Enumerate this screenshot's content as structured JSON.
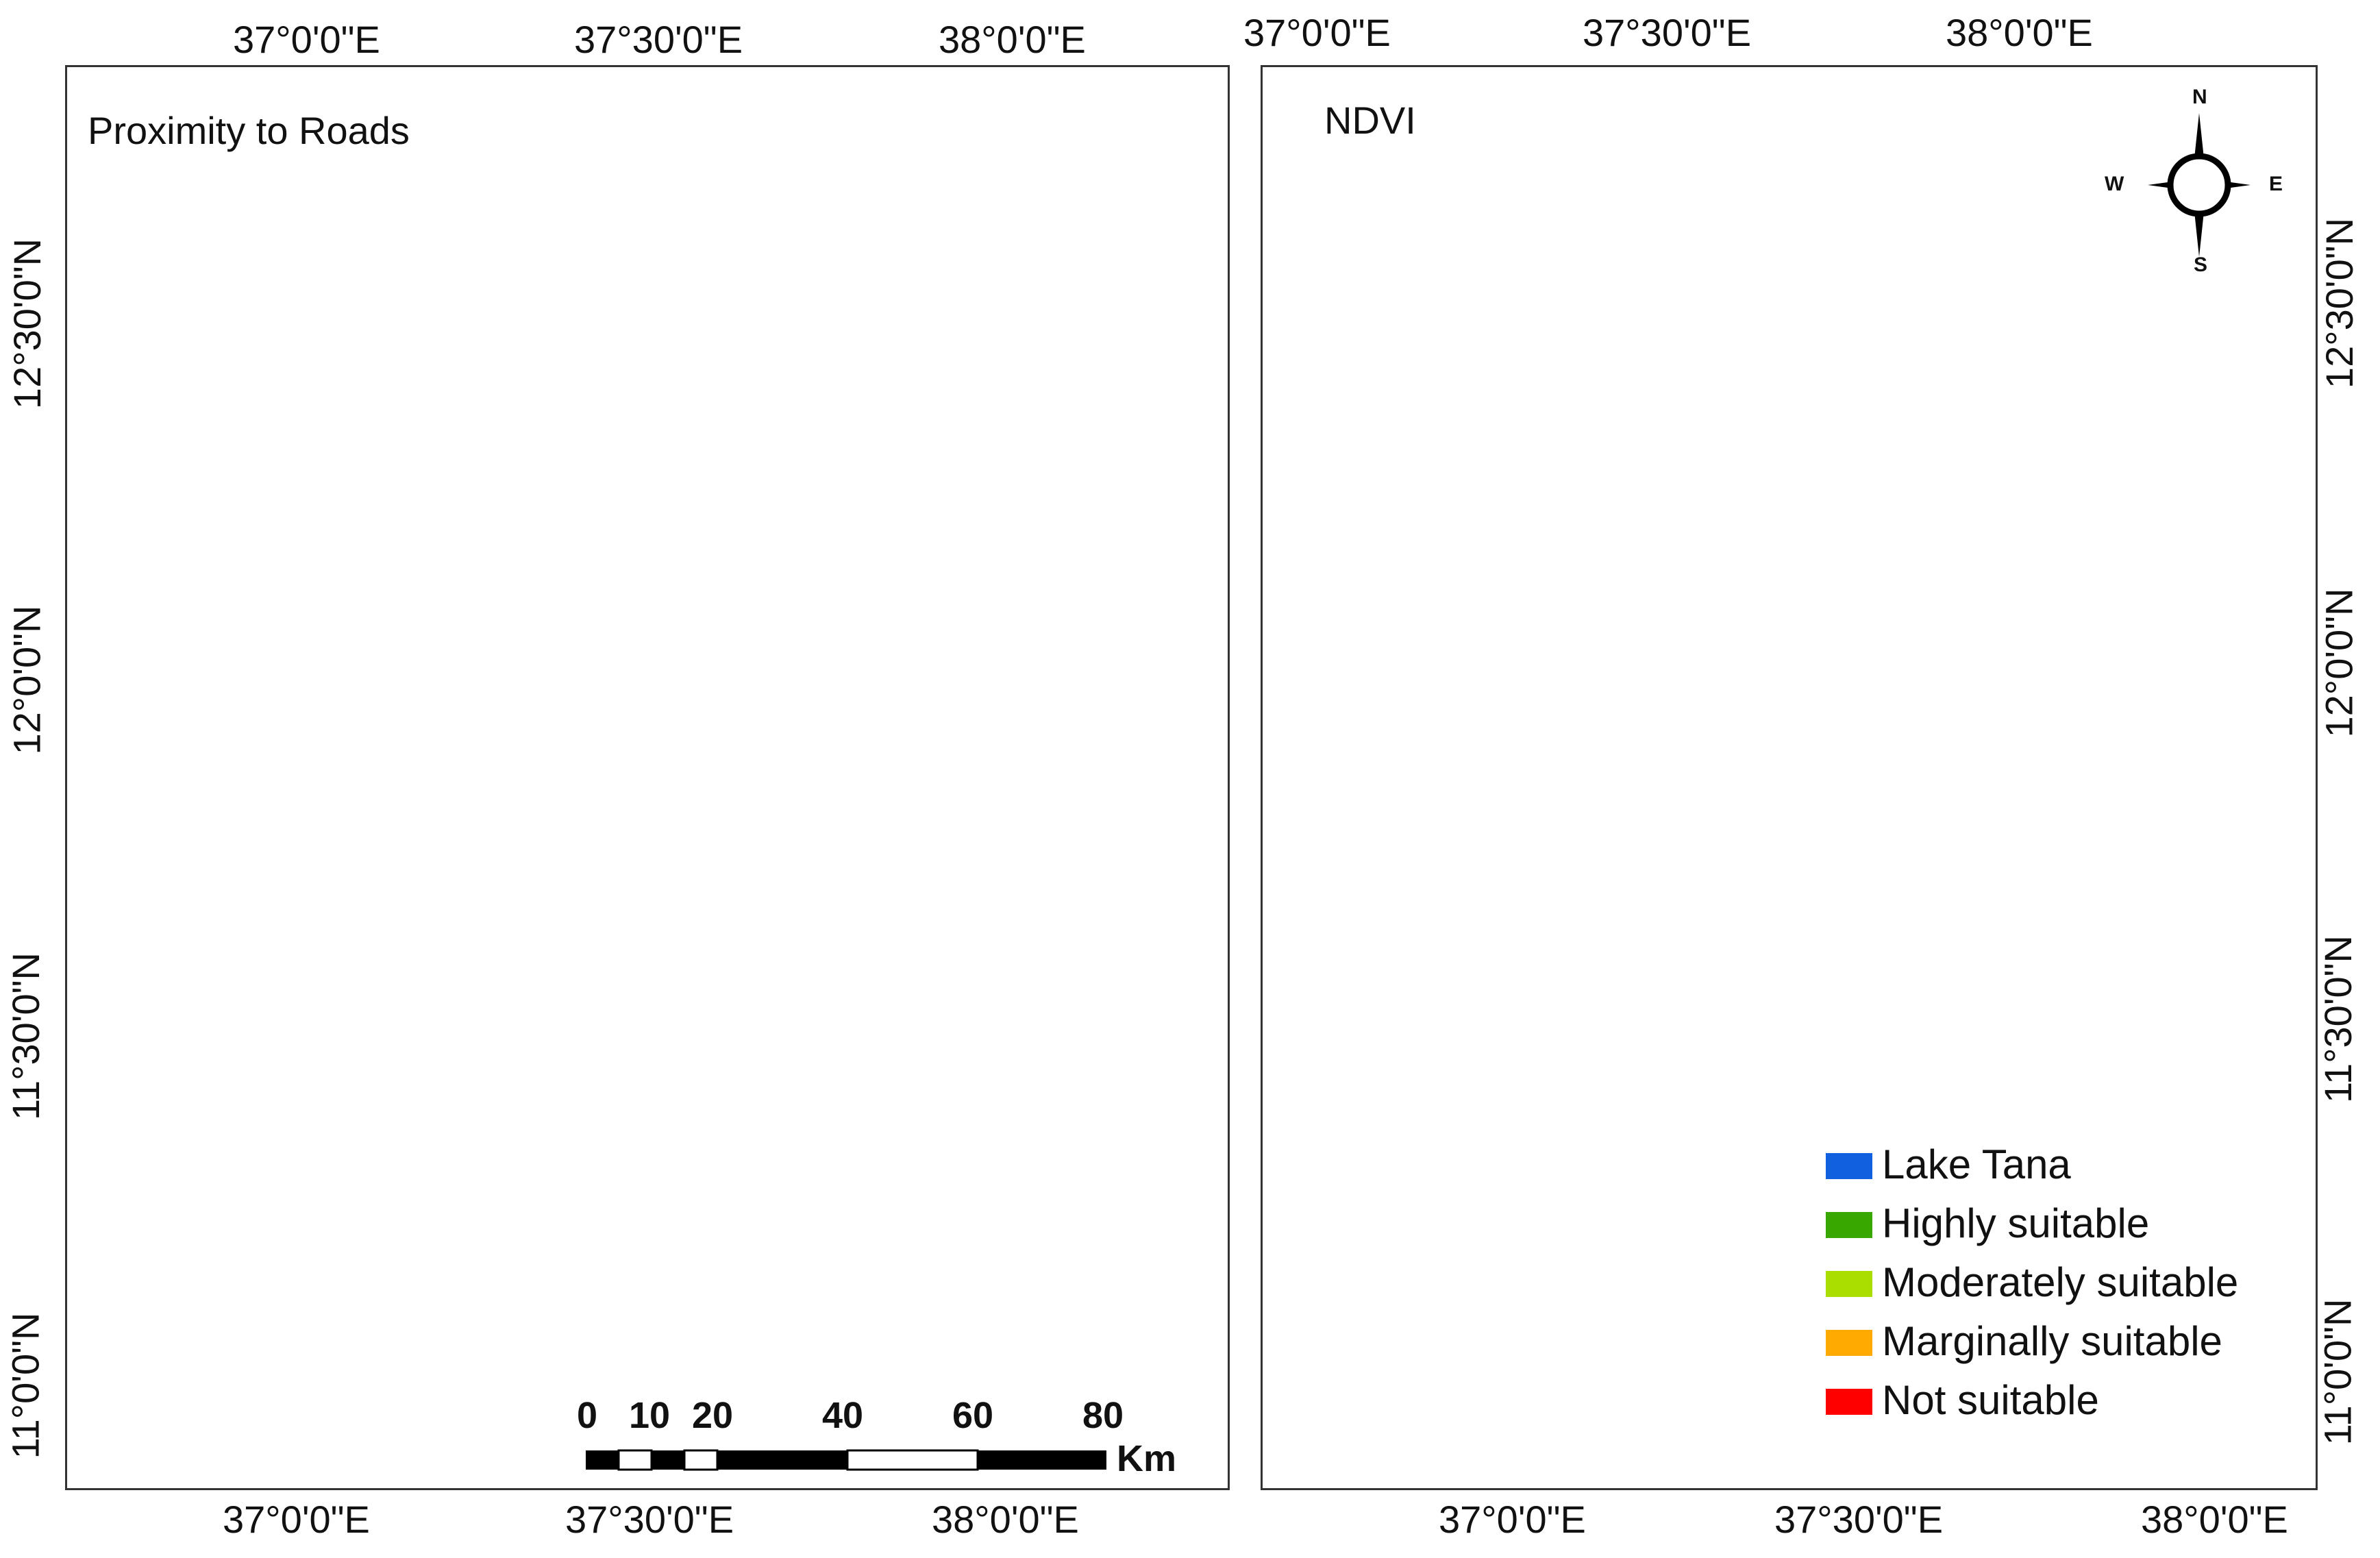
{
  "panels": {
    "left": {
      "title": "Proximity to Roads"
    },
    "right": {
      "title": "NDVI"
    }
  },
  "axes": {
    "left_top": [
      "37°0'0\"E",
      "37°30'0\"E",
      "38°0'0\"E"
    ],
    "left_bottom": [
      "37°0'0\"E",
      "37°30'0\"E",
      "38°0'0\"E"
    ],
    "left_side": [
      "12°30'0\"N",
      "12°0'0\"N",
      "11°30'0\"N",
      "11°0'0\"N"
    ],
    "right_top": [
      "37°0'0\"E",
      "37°30'0\"E",
      "38°0'0\"E"
    ],
    "right_bottom": [
      "37°0'0\"E",
      "37°30'0\"E",
      "38°0'0\"E"
    ],
    "right_side": [
      "12°30'0\"N",
      "12°0'0\"N",
      "11°30'0\"N",
      "11°0'0\"N"
    ]
  },
  "legend": [
    {
      "label": "Lake Tana",
      "color": "#1060e0"
    },
    {
      "label": "Highly suitable",
      "color": "#38a800"
    },
    {
      "label": "Moderately suitable",
      "color": "#aade00"
    },
    {
      "label": "Marginally suitable",
      "color": "#ffaa00"
    },
    {
      "label": "Not suitable",
      "color": "#ff0000"
    }
  ],
  "scale_bar": {
    "labels": [
      "0",
      "10",
      "20",
      "40",
      "60",
      "80"
    ],
    "unit": "Km"
  },
  "north_arrow": {
    "n": "N",
    "s": "S",
    "e": "E",
    "w": "W",
    "icon": "compass-rose-icon"
  },
  "colors": {
    "lake": "#1060e0",
    "highly": "#38a800",
    "moderately": "#aade00",
    "marginally": "#ffaa00",
    "not_suitable": "#ff0000"
  }
}
